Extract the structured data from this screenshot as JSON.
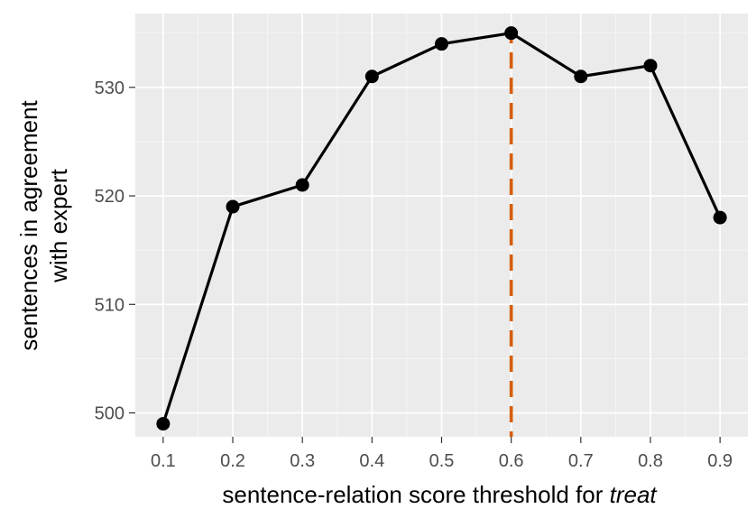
{
  "chart_data": {
    "type": "line",
    "title": "",
    "xlabel": "sentence-relation score threshold for",
    "xlabel_italic": "treat",
    "ylabel_lines": [
      "sentences in agreement",
      "with expert"
    ],
    "x": [
      0.1,
      0.2,
      0.3,
      0.4,
      0.5,
      0.6,
      0.7,
      0.8,
      0.9
    ],
    "x_tick_labels": [
      "0.1",
      "0.2",
      "0.3",
      "0.4",
      "0.5",
      "0.6",
      "0.7",
      "0.8",
      "0.9"
    ],
    "y": [
      499,
      519,
      521,
      531,
      534,
      535,
      531,
      532,
      518
    ],
    "y_ticks": [
      500,
      510,
      520,
      530
    ],
    "y_tick_labels": [
      "500",
      "510",
      "520",
      "530"
    ],
    "xlim": [
      0.06,
      0.94
    ],
    "ylim": [
      497.8,
      536.8
    ],
    "vline": {
      "x": 0.6,
      "color": "#d55e00",
      "style": "dashed"
    },
    "line_color": "#000000",
    "panel_background": "#ebebeb",
    "grid": true,
    "legend": "none"
  }
}
